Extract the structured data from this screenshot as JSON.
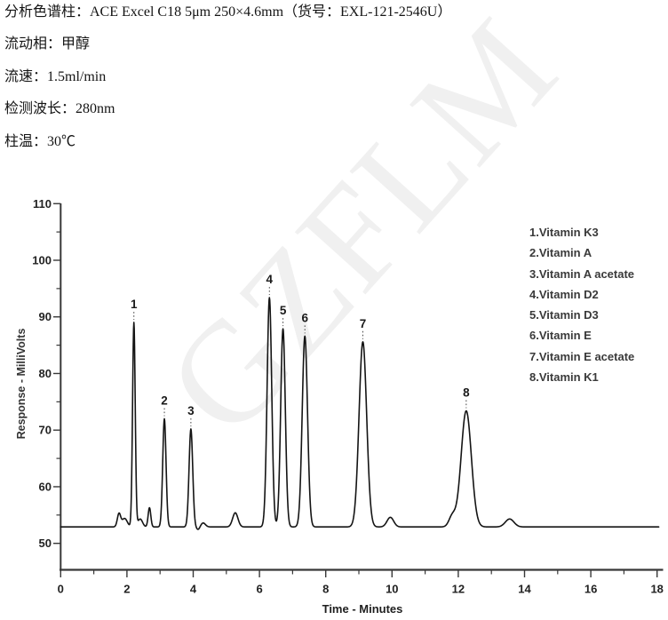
{
  "header": {
    "lines": [
      "分析色谱柱：ACE Excel C18 5μm 250×4.6mm（货号：EXL-121-2546U）",
      "流动相：甲醇",
      "流速：1.5ml/min",
      "检测波长：280nm",
      "柱温：30℃"
    ]
  },
  "watermark": {
    "text": "GZFLM",
    "color": "rgba(0,0,0,0.06)"
  },
  "chart_data": {
    "type": "line",
    "title": "",
    "xlabel": "Time - Minutes",
    "ylabel": "Response - MilliVolts",
    "xlim": [
      0,
      18.1
    ],
    "ylim": [
      45,
      110
    ],
    "x_major_ticks": [
      0,
      2,
      4,
      6,
      8,
      10,
      12,
      14,
      16,
      18
    ],
    "x_minor_ticks": [
      1,
      3,
      5,
      7,
      9,
      11,
      13,
      15,
      17
    ],
    "y_major_ticks": [
      50,
      60,
      70,
      80,
      90,
      100,
      110
    ],
    "y_minor_ticks": [
      55,
      65,
      75,
      85,
      95,
      105
    ],
    "grid": false,
    "legend_position": "upper-right",
    "baseline_mv": 52.9,
    "trace_color": "#141414",
    "axis_color": "#383838",
    "peaks": [
      {
        "label": "1",
        "analyte": "Vitamin K3",
        "time_min": 2.21,
        "apex_mv": 89.0,
        "sigma_min": 0.04
      },
      {
        "label": "2",
        "analyte": "Vitamin A",
        "time_min": 3.13,
        "apex_mv": 72.0,
        "sigma_min": 0.05
      },
      {
        "label": "3",
        "analyte": "Vitamin A acetate",
        "time_min": 3.93,
        "apex_mv": 70.2,
        "sigma_min": 0.055
      },
      {
        "label": "4",
        "analyte": "Vitamin D2",
        "time_min": 6.3,
        "apex_mv": 93.4,
        "sigma_min": 0.07
      },
      {
        "label": "5",
        "analyte": "Vitamin D3",
        "time_min": 6.71,
        "apex_mv": 87.9,
        "sigma_min": 0.07
      },
      {
        "label": "6",
        "analyte": "Vitamin E",
        "time_min": 7.37,
        "apex_mv": 86.6,
        "sigma_min": 0.08
      },
      {
        "label": "7",
        "analyte": "Vitamin E acetate",
        "time_min": 9.12,
        "apex_mv": 85.6,
        "sigma_min": 0.115
      },
      {
        "label": "8",
        "analyte": "Vitamin K1",
        "time_min": 12.24,
        "apex_mv": 73.4,
        "sigma_min": 0.155
      }
    ],
    "minor_features": [
      {
        "time_min": 1.76,
        "apex_mv": 55.2,
        "sigma_min": 0.05
      },
      {
        "time_min": 1.93,
        "apex_mv": 54.4,
        "sigma_min": 0.08
      },
      {
        "time_min": 2.4,
        "apex_mv": 54.3,
        "sigma_min": 0.07
      },
      {
        "time_min": 2.68,
        "apex_mv": 56.3,
        "sigma_min": 0.04
      },
      {
        "time_min": 4.15,
        "apex_mv": 52.4,
        "sigma_min": 0.05
      },
      {
        "time_min": 4.3,
        "apex_mv": 53.6,
        "sigma_min": 0.07
      },
      {
        "time_min": 5.27,
        "apex_mv": 55.4,
        "sigma_min": 0.08
      },
      {
        "time_min": 9.95,
        "apex_mv": 54.6,
        "sigma_min": 0.1
      },
      {
        "time_min": 11.82,
        "apex_mv": 54.8,
        "sigma_min": 0.1
      },
      {
        "time_min": 13.55,
        "apex_mv": 54.3,
        "sigma_min": 0.13
      }
    ],
    "legend": [
      "1.Vitamin K3",
      "2.Vitamin A",
      "3.Vitamin A acetate",
      "4.Vitamin D2",
      "5.Vitamin D3",
      "6.Vitamin E",
      "7.Vitamin E acetate",
      "8.Vitamin K1"
    ]
  }
}
